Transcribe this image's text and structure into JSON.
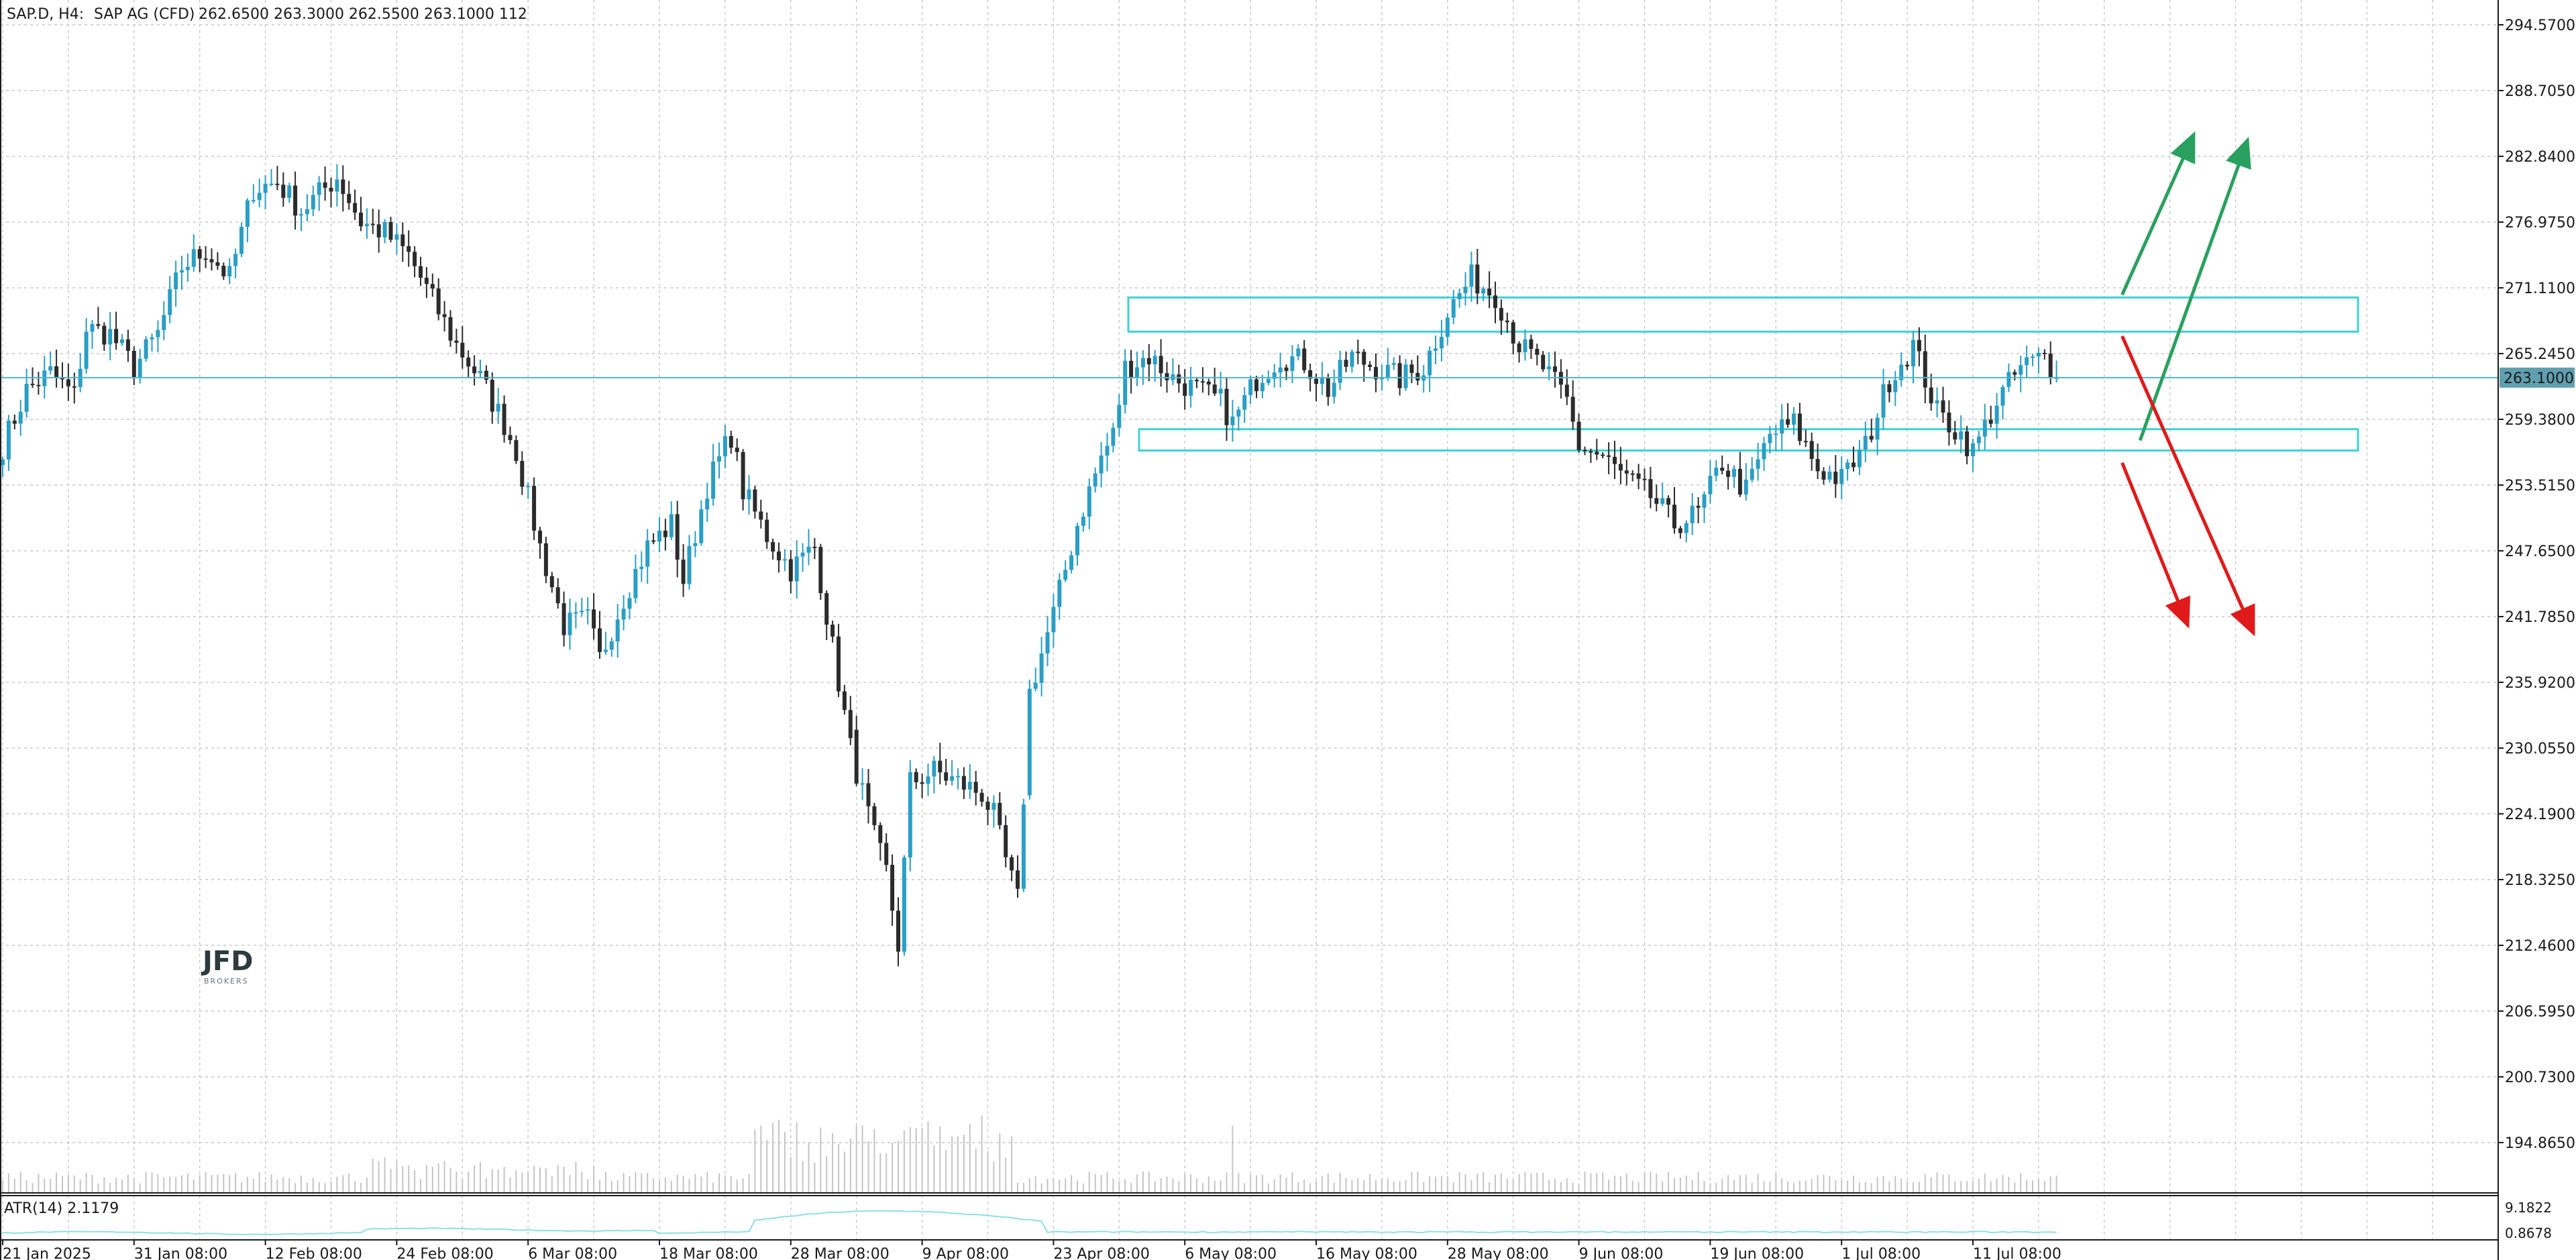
{
  "header": {
    "symbol": "SAP.D, H4:",
    "name": "SAP AG (CFD)",
    "ohlcv": "262.6500 263.3000 262.5500 263.1000 112"
  },
  "indicator": {
    "label": "ATR(14) 2.1179",
    "axis_top": "9.1822",
    "axis_bottom": "0.8678"
  },
  "price_label": "263.1000",
  "logo": {
    "main": "JFD",
    "sub": "BROKERS"
  },
  "colors": {
    "background": "#ffffff",
    "bull": "#2a9ec4",
    "bear": "#2b2b2b",
    "grid": "#c8c8c8",
    "zone": "#3fd1d6",
    "price_line": "#4fb5c8",
    "up_arrow": "#2aa05f",
    "down_arrow": "#e01a1a",
    "volume": "#c4c4c4",
    "atr": "#8fe0e2"
  },
  "chart_data": {
    "type": "candlestick",
    "price_axis_ticks": [
      294.57,
      288.705,
      282.84,
      276.975,
      271.11,
      265.245,
      259.38,
      253.515,
      247.65,
      241.785,
      235.92,
      230.055,
      224.19,
      218.325,
      212.46,
      206.595,
      200.73,
      194.865
    ],
    "price_axis_labels": [
      "294.5700",
      "288.7050",
      "282.8400",
      "276.9750",
      "271.1100",
      "265.2450",
      "259.3800",
      "253.5150",
      "247.6500",
      "241.7850",
      "235.9200",
      "230.0550",
      "224.1900",
      "218.3250",
      "212.4600",
      "206.5950",
      "200.7300",
      "194.8650"
    ],
    "x_ticks": [
      {
        "label": "21 Jan 2025",
        "index": 0
      },
      {
        "label": "31 Jan 08:00",
        "index": 22
      },
      {
        "label": "12 Feb 08:00",
        "index": 44
      },
      {
        "label": "24 Feb 08:00",
        "index": 66
      },
      {
        "label": "6 Mar 08:00",
        "index": 88
      },
      {
        "label": "18 Mar 08:00",
        "index": 110
      },
      {
        "label": "28 Mar 08:00",
        "index": 132
      },
      {
        "label": "9 Apr 08:00",
        "index": 154
      },
      {
        "label": "23 Apr 08:00",
        "index": 176
      },
      {
        "label": "6 May 08:00",
        "index": 198
      },
      {
        "label": "16 May 08:00",
        "index": 220
      },
      {
        "label": "28 May 08:00",
        "index": 242
      },
      {
        "label": "9 Jun 08:00",
        "index": 264
      },
      {
        "label": "19 Jun 08:00",
        "index": 286
      },
      {
        "label": "1 Jul 08:00",
        "index": 308
      },
      {
        "label": "11 Jul 08:00",
        "index": 330
      }
    ],
    "last_price": 263.1,
    "anchors": [
      [
        0,
        257.0
      ],
      [
        4,
        262.0
      ],
      [
        8,
        263.5
      ],
      [
        12,
        261.5
      ],
      [
        14,
        267.5
      ],
      [
        18,
        267.0
      ],
      [
        22,
        264.0
      ],
      [
        26,
        267.0
      ],
      [
        30,
        273.0
      ],
      [
        34,
        274.5
      ],
      [
        38,
        272.0
      ],
      [
        42,
        280.0
      ],
      [
        46,
        280.5
      ],
      [
        50,
        278.0
      ],
      [
        56,
        281.0
      ],
      [
        60,
        277.0
      ],
      [
        64,
        276.0
      ],
      [
        68,
        274.0
      ],
      [
        72,
        270.0
      ],
      [
        76,
        266.0
      ],
      [
        80,
        263.0
      ],
      [
        84,
        259.0
      ],
      [
        86,
        256.5
      ],
      [
        90,
        248.0
      ],
      [
        94,
        241.0
      ],
      [
        98,
        241.5
      ],
      [
        100,
        238.0
      ],
      [
        104,
        243.5
      ],
      [
        108,
        248.0
      ],
      [
        112,
        250.0
      ],
      [
        114,
        245.0
      ],
      [
        118,
        253.5
      ],
      [
        122,
        258.0
      ],
      [
        124,
        253.0
      ],
      [
        128,
        249.0
      ],
      [
        132,
        246.0
      ],
      [
        136,
        248.0
      ],
      [
        138,
        242.0
      ],
      [
        142,
        230.0
      ],
      [
        146,
        222.0
      ],
      [
        148,
        219.0
      ],
      [
        150,
        212.5
      ],
      [
        152,
        227.0
      ],
      [
        156,
        228.0
      ],
      [
        160,
        227.0
      ],
      [
        164,
        226.0
      ],
      [
        166,
        224.0
      ],
      [
        168,
        220.0
      ],
      [
        170,
        216.5
      ],
      [
        172,
        235.0
      ],
      [
        176,
        242.0
      ],
      [
        180,
        250.0
      ],
      [
        184,
        256.0
      ],
      [
        186,
        258.0
      ],
      [
        188,
        264.0
      ],
      [
        192,
        265.0
      ],
      [
        196,
        263.0
      ],
      [
        200,
        262.0
      ],
      [
        204,
        261.0
      ],
      [
        206,
        259.0
      ],
      [
        210,
        263.0
      ],
      [
        214,
        265.0
      ],
      [
        218,
        264.5
      ],
      [
        222,
        262.0
      ],
      [
        226,
        265.0
      ],
      [
        230,
        264.0
      ],
      [
        234,
        263.0
      ],
      [
        238,
        264.0
      ],
      [
        242,
        269.0
      ],
      [
        246,
        272.0
      ],
      [
        250,
        270.5
      ],
      [
        254,
        266.0
      ],
      [
        258,
        264.0
      ],
      [
        262,
        261.0
      ],
      [
        264,
        257.0
      ],
      [
        268,
        256.0
      ],
      [
        272,
        254.0
      ],
      [
        276,
        252.5
      ],
      [
        280,
        250.0
      ],
      [
        284,
        251.0
      ],
      [
        288,
        255.5
      ],
      [
        292,
        253.0
      ],
      [
        296,
        258.0
      ],
      [
        300,
        259.0
      ],
      [
        304,
        255.0
      ],
      [
        308,
        254.0
      ],
      [
        312,
        257.0
      ],
      [
        316,
        263.0
      ],
      [
        320,
        266.0
      ],
      [
        324,
        260.0
      ],
      [
        328,
        258.0
      ],
      [
        330,
        256.5
      ],
      [
        334,
        261.0
      ],
      [
        338,
        264.0
      ],
      [
        342,
        265.0
      ],
      [
        344,
        263.1
      ]
    ],
    "zones": [
      {
        "top": 270.25,
        "bottom": 267.2
      },
      {
        "top": 258.5,
        "bottom": 256.6
      }
    ],
    "arrows": [
      {
        "color": "up",
        "from": [
          355,
          270.5
        ],
        "to": [
          367,
          284.8
        ]
      },
      {
        "color": "up",
        "from": [
          358,
          257.5
        ],
        "to": [
          376,
          284.3
        ]
      },
      {
        "color": "down",
        "from": [
          355,
          266.8
        ],
        "to": [
          377,
          240.3
        ]
      },
      {
        "color": "down",
        "from": [
          355,
          255.5
        ],
        "to": [
          366,
          241.0
        ]
      }
    ],
    "atr_range": [
      0.8678,
      9.1822
    ]
  }
}
